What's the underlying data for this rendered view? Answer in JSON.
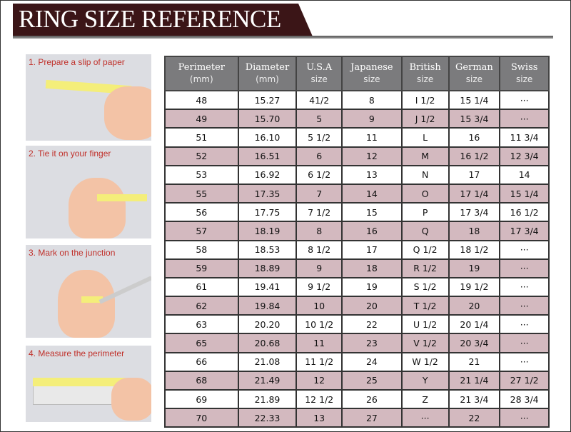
{
  "title": "RING SIZE REFERENCE",
  "steps": [
    {
      "label": "1. Prepare a slip of paper"
    },
    {
      "label": "2. Tie it on your finger"
    },
    {
      "label": "3. Mark on the junction"
    },
    {
      "label": "4. Measure the perimeter"
    }
  ],
  "table": {
    "headers": [
      {
        "title": "Perimeter",
        "sub": "(mm)"
      },
      {
        "title": "Diameter",
        "sub": "(mm)"
      },
      {
        "title": "U.S.A",
        "sub": "size"
      },
      {
        "title": "Japanese",
        "sub": "size"
      },
      {
        "title": "British",
        "sub": "size"
      },
      {
        "title": "German",
        "sub": "size"
      },
      {
        "title": "Swiss",
        "sub": "size"
      }
    ],
    "rows": [
      [
        "48",
        "15.27",
        "41/2",
        "8",
        "I 1/2",
        "15 1/4",
        "···"
      ],
      [
        "49",
        "15.70",
        "5",
        "9",
        "J 1/2",
        "15 3/4",
        "···"
      ],
      [
        "51",
        "16.10",
        "5 1/2",
        "11",
        "L",
        "16",
        "11 3/4"
      ],
      [
        "52",
        "16.51",
        "6",
        "12",
        "M",
        "16 1/2",
        "12 3/4"
      ],
      [
        "53",
        "16.92",
        "6 1/2",
        "13",
        "N",
        "17",
        "14"
      ],
      [
        "55",
        "17.35",
        "7",
        "14",
        "O",
        "17 1/4",
        "15 1/4"
      ],
      [
        "56",
        "17.75",
        "7 1/2",
        "15",
        "P",
        "17 3/4",
        "16 1/2"
      ],
      [
        "57",
        "18.19",
        "8",
        "16",
        "Q",
        "18",
        "17 3/4"
      ],
      [
        "58",
        "18.53",
        "8 1/2",
        "17",
        "Q  1/2",
        "18 1/2",
        "···"
      ],
      [
        "59",
        "18.89",
        "9",
        "18",
        "R 1/2",
        "19",
        "···"
      ],
      [
        "61",
        "19.41",
        "9 1/2",
        "19",
        "S 1/2",
        "19 1/2",
        "···"
      ],
      [
        "62",
        "19.84",
        "10",
        "20",
        "T 1/2",
        "20",
        "···"
      ],
      [
        "63",
        "20.20",
        "10 1/2",
        "22",
        "U 1/2",
        "20 1/4",
        "···"
      ],
      [
        "65",
        "20.68",
        "11",
        "23",
        "V 1/2",
        "20 3/4",
        "···"
      ],
      [
        "66",
        "21.08",
        "11 1/2",
        "24",
        "W 1/2",
        "21",
        "···"
      ],
      [
        "68",
        "21.49",
        "12",
        "25",
        "Y",
        "21 1/4",
        "27 1/2"
      ],
      [
        "69",
        "21.89",
        "12 1/2",
        "26",
        "Z",
        "21 3/4",
        "28 3/4"
      ],
      [
        "70",
        "22.33",
        "13",
        "27",
        "···",
        "22",
        "···"
      ]
    ]
  },
  "colors": {
    "banner": "#3b1517",
    "header": "#7b7b7d",
    "alt_row": "#d3b9bf",
    "step_text": "#c0302a"
  }
}
